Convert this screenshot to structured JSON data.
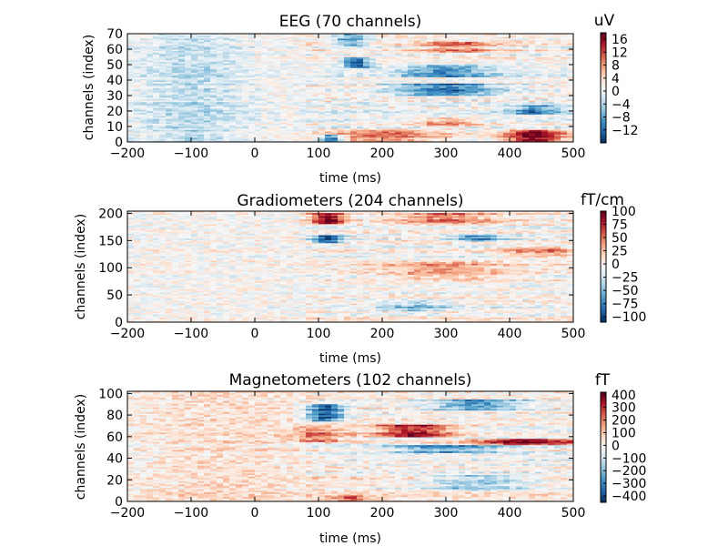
{
  "chart_data": [
    {
      "type": "heatmap",
      "title": "EEG (70 channels)",
      "xlabel": "time (ms)",
      "ylabel": "channels (index)",
      "xlim": [
        -200,
        500
      ],
      "ylim": [
        0,
        70
      ],
      "xticks": [
        -200,
        -100,
        0,
        100,
        200,
        300,
        400,
        500
      ],
      "yticks": [
        0,
        10,
        20,
        30,
        40,
        50,
        60,
        70
      ],
      "n_channels": 70,
      "colorbar": {
        "unit": "uV",
        "range": [
          -16,
          18
        ],
        "ticks": [
          "16",
          "12",
          "8",
          "4",
          "0",
          "−4",
          "−8",
          "−12"
        ],
        "tick_values": [
          16,
          12,
          8,
          4,
          0,
          -4,
          -8,
          -12
        ],
        "colormap": "RdBu_r"
      },
      "features": [
        {
          "t": 120,
          "c0": 0,
          "c1": 5,
          "w": 25,
          "v": -0.9
        },
        {
          "t": 160,
          "c0": 48,
          "c1": 55,
          "w": 30,
          "v": -0.8
        },
        {
          "t": 150,
          "c0": 62,
          "c1": 70,
          "w": 40,
          "v": -0.6
        },
        {
          "t": 200,
          "c0": 0,
          "c1": 8,
          "w": 120,
          "v": 0.5
        },
        {
          "t": 300,
          "c0": 30,
          "c1": 38,
          "w": 120,
          "v": -0.7
        },
        {
          "t": 300,
          "c0": 42,
          "c1": 50,
          "w": 100,
          "v": -0.55
        },
        {
          "t": 320,
          "c0": 58,
          "c1": 65,
          "w": 80,
          "v": 0.45
        },
        {
          "t": 440,
          "c0": 0,
          "c1": 8,
          "w": 60,
          "v": 0.95
        },
        {
          "t": 440,
          "c0": 18,
          "c1": 24,
          "w": 60,
          "v": -0.6
        },
        {
          "t": 300,
          "c0": 10,
          "c1": 16,
          "w": 80,
          "v": 0.4
        },
        {
          "t": -100,
          "c0": 0,
          "c1": 70,
          "w": 120,
          "v": -0.25
        }
      ]
    },
    {
      "type": "heatmap",
      "title": "Gradiometers (204 channels)",
      "xlabel": "time (ms)",
      "ylabel": "channels (index)",
      "xlim": [
        -200,
        500
      ],
      "ylim": [
        0,
        204
      ],
      "xticks": [
        -200,
        -100,
        0,
        100,
        200,
        300,
        400,
        500
      ],
      "yticks": [
        0,
        50,
        100,
        150,
        200
      ],
      "n_channels": 204,
      "colorbar": {
        "unit": "fT/cm",
        "range": [
          -110,
          100
        ],
        "ticks": [
          "100",
          "75",
          "50",
          "25",
          "0",
          "−25",
          "−50",
          "−75",
          "−100"
        ],
        "tick_values": [
          100,
          75,
          50,
          25,
          0,
          -25,
          -50,
          -75,
          -100
        ],
        "colormap": "RdBu_r"
      },
      "features": [
        {
          "t": 115,
          "c0": 180,
          "c1": 200,
          "w": 40,
          "v": 0.9
        },
        {
          "t": 115,
          "c0": 145,
          "c1": 160,
          "w": 35,
          "v": -0.9
        },
        {
          "t": 300,
          "c0": 180,
          "c1": 200,
          "w": 120,
          "v": 0.5
        },
        {
          "t": 350,
          "c0": 150,
          "c1": 160,
          "w": 60,
          "v": -0.6
        },
        {
          "t": 300,
          "c0": 80,
          "c1": 110,
          "w": 140,
          "v": 0.35
        },
        {
          "t": 250,
          "c0": 20,
          "c1": 40,
          "w": 80,
          "v": -0.35
        },
        {
          "t": 450,
          "c0": 120,
          "c1": 140,
          "w": 80,
          "v": 0.4
        }
      ]
    },
    {
      "type": "heatmap",
      "title": "Magnetometers (102 channels)",
      "xlabel": "time (ms)",
      "ylabel": "channels (index)",
      "xlim": [
        -200,
        500
      ],
      "ylim": [
        0,
        102
      ],
      "xticks": [
        -200,
        -100,
        0,
        100,
        200,
        300,
        400,
        500
      ],
      "yticks": [
        0,
        20,
        40,
        60,
        80,
        100
      ],
      "n_channels": 102,
      "colorbar": {
        "unit": "fT",
        "range": [
          -450,
          420
        ],
        "ticks": [
          "400",
          "300",
          "200",
          "100",
          "0",
          "−100",
          "−200",
          "−300",
          "−400"
        ],
        "tick_values": [
          400,
          300,
          200,
          100,
          0,
          -100,
          -200,
          -300,
          -400
        ],
        "colormap": "RdBu_r"
      },
      "features": [
        {
          "t": 110,
          "c0": 75,
          "c1": 90,
          "w": 40,
          "v": -0.9
        },
        {
          "t": 250,
          "c0": 60,
          "c1": 72,
          "w": 90,
          "v": 0.8
        },
        {
          "t": 430,
          "c0": 52,
          "c1": 58,
          "w": 130,
          "v": 0.85
        },
        {
          "t": 300,
          "c0": 45,
          "c1": 52,
          "w": 120,
          "v": -0.6
        },
        {
          "t": 350,
          "c0": 85,
          "c1": 95,
          "w": 100,
          "v": -0.55
        },
        {
          "t": 350,
          "c0": 10,
          "c1": 25,
          "w": 100,
          "v": -0.4
        },
        {
          "t": 100,
          "c0": 55,
          "c1": 70,
          "w": 60,
          "v": 0.45
        },
        {
          "t": 150,
          "c0": 0,
          "c1": 6,
          "w": 40,
          "v": 0.5
        },
        {
          "t": -50,
          "c0": 0,
          "c1": 102,
          "w": 200,
          "v": 0.15
        }
      ]
    }
  ]
}
